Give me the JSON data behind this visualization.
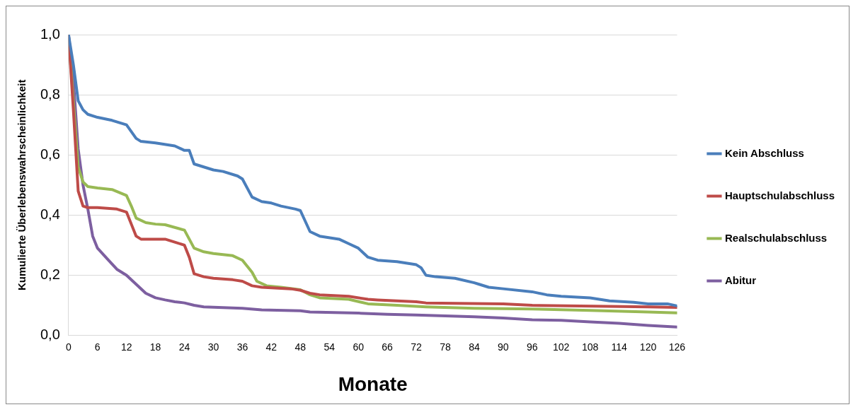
{
  "chart_data": {
    "type": "line",
    "xlabel": "Monate",
    "ylabel": "Kumulierte Überlebenswahrscheinlichkeit",
    "xlim": [
      0,
      126
    ],
    "xticks": [
      0,
      6,
      12,
      18,
      24,
      30,
      36,
      42,
      48,
      54,
      60,
      66,
      72,
      78,
      84,
      90,
      96,
      102,
      108,
      114,
      120,
      126
    ],
    "ylim": [
      0,
      1
    ],
    "yticks": [
      {
        "value": 0,
        "label": "0,0"
      },
      {
        "value": 0.2,
        "label": "0,2"
      },
      {
        "value": 0.4,
        "label": "0,4"
      },
      {
        "value": 0.6,
        "label": "0,6"
      },
      {
        "value": 0.8,
        "label": "0,8"
      },
      {
        "value": 1,
        "label": "1,0"
      }
    ],
    "grid": "y",
    "legend": "right",
    "marker": "none",
    "line_style": "solid",
    "series": [
      {
        "name": "Kein Abschluss",
        "color": "#4a7ebb",
        "x": [
          0,
          1,
          2,
          3,
          4,
          6,
          9,
          12,
          14,
          15,
          18,
          22,
          24,
          25,
          26,
          28,
          30,
          32,
          35,
          36,
          38,
          40,
          42,
          44,
          47,
          48,
          50,
          52,
          56,
          58,
          60,
          62,
          64,
          68,
          72,
          73,
          74,
          76,
          80,
          84,
          85,
          87,
          90,
          96,
          99,
          102,
          108,
          112,
          117,
          120,
          124,
          126
        ],
        "values": [
          1.0,
          0.9,
          0.78,
          0.75,
          0.735,
          0.725,
          0.715,
          0.7,
          0.655,
          0.645,
          0.64,
          0.63,
          0.615,
          0.615,
          0.57,
          0.56,
          0.55,
          0.545,
          0.53,
          0.52,
          0.46,
          0.445,
          0.44,
          0.43,
          0.42,
          0.415,
          0.345,
          0.33,
          0.32,
          0.305,
          0.29,
          0.26,
          0.25,
          0.245,
          0.235,
          0.225,
          0.2,
          0.195,
          0.19,
          0.175,
          0.17,
          0.16,
          0.155,
          0.145,
          0.135,
          0.13,
          0.125,
          0.115,
          0.11,
          0.105,
          0.105,
          0.098
        ]
      },
      {
        "name": "Hauptschulabschluss",
        "color": "#be4b48",
        "x": [
          0,
          1,
          2,
          3,
          4,
          6,
          10,
          12,
          13,
          14,
          15,
          20,
          22,
          24,
          25,
          26,
          28,
          30,
          34,
          36,
          38,
          40,
          46,
          48,
          50,
          52,
          58,
          62,
          64,
          72,
          74,
          90,
          96,
          120,
          126
        ],
        "values": [
          1.0,
          0.75,
          0.48,
          0.43,
          0.425,
          0.425,
          0.42,
          0.41,
          0.37,
          0.33,
          0.32,
          0.32,
          0.31,
          0.3,
          0.26,
          0.205,
          0.195,
          0.19,
          0.185,
          0.18,
          0.165,
          0.16,
          0.155,
          0.15,
          0.14,
          0.135,
          0.13,
          0.12,
          0.118,
          0.112,
          0.108,
          0.105,
          0.1,
          0.095,
          0.093
        ]
      },
      {
        "name": "Realschulabschluss",
        "color": "#98b954",
        "x": [
          0,
          1,
          2,
          3,
          4,
          6,
          9,
          12,
          13,
          14,
          16,
          18,
          20,
          24,
          25,
          26,
          28,
          30,
          34,
          36,
          38,
          39,
          41,
          44,
          48,
          50,
          52,
          58,
          62,
          68,
          74,
          84,
          96,
          108,
          120,
          126
        ],
        "values": [
          1.0,
          0.78,
          0.56,
          0.51,
          0.495,
          0.49,
          0.485,
          0.465,
          0.43,
          0.39,
          0.375,
          0.37,
          0.368,
          0.35,
          0.32,
          0.29,
          0.278,
          0.272,
          0.265,
          0.25,
          0.21,
          0.18,
          0.165,
          0.16,
          0.152,
          0.135,
          0.125,
          0.12,
          0.105,
          0.1,
          0.095,
          0.09,
          0.088,
          0.083,
          0.078,
          0.075
        ]
      },
      {
        "name": "Abitur",
        "color": "#7d5fa0",
        "x": [
          0,
          1,
          2,
          3,
          4,
          5,
          6,
          8,
          10,
          12,
          14,
          16,
          18,
          20,
          22,
          24,
          26,
          28,
          36,
          40,
          48,
          50,
          60,
          66,
          72,
          78,
          84,
          90,
          96,
          102,
          108,
          114,
          120,
          126
        ],
        "values": [
          1.0,
          0.85,
          0.62,
          0.5,
          0.42,
          0.33,
          0.29,
          0.255,
          0.22,
          0.2,
          0.17,
          0.14,
          0.125,
          0.118,
          0.112,
          0.108,
          0.1,
          0.095,
          0.09,
          0.085,
          0.082,
          0.078,
          0.074,
          0.07,
          0.068,
          0.065,
          0.062,
          0.058,
          0.052,
          0.05,
          0.045,
          0.04,
          0.033,
          0.028
        ]
      }
    ]
  }
}
